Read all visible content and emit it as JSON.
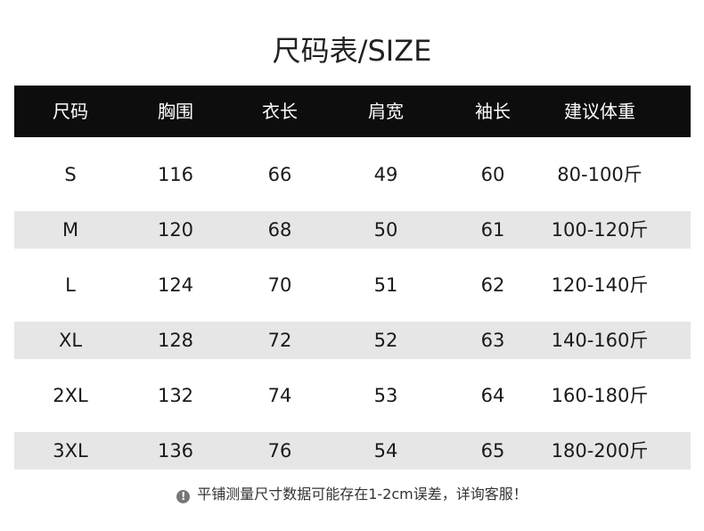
{
  "title": "尺码表/SIZE",
  "headers": [
    "尺码",
    "胸围",
    "衣长",
    "肩宽",
    "袖长",
    "建议体重"
  ],
  "rows": [
    [
      "S",
      "116",
      "66",
      "49",
      "60",
      "80-100斤"
    ],
    [
      "M",
      "120",
      "68",
      "50",
      "61",
      "100-120斤"
    ],
    [
      "L",
      "124",
      "70",
      "51",
      "62",
      "120-140斤"
    ],
    [
      "XL",
      "128",
      "72",
      "52",
      "63",
      "140-160斤"
    ],
    [
      "2XL",
      "132",
      "74",
      "53",
      "64",
      "160-180斤"
    ],
    [
      "3XL",
      "136",
      "76",
      "54",
      "65",
      "180-200斤"
    ]
  ],
  "note": {
    "icon": "exclamation-circle-icon",
    "text": "平铺测量尺寸数据可能存在1-2cm误差，详询客服！"
  },
  "colors": {
    "header_bg": "#0d0d0d",
    "stripe": "#e6e6e6"
  }
}
